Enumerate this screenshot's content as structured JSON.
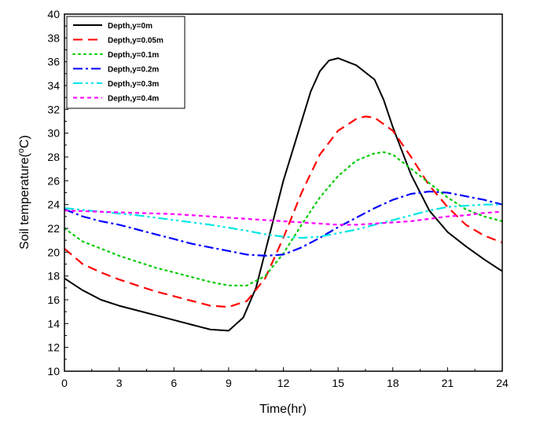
{
  "chart_data": {
    "type": "line",
    "xlabel": "Time(hr)",
    "ylabel_main": "Soil temperature(",
    "ylabel_sup": "o",
    "ylabel_end": "C)",
    "xlim": [
      0,
      24
    ],
    "ylim": [
      10,
      40
    ],
    "xticks": [
      "0",
      "3",
      "6",
      "9",
      "12",
      "15",
      "18",
      "21",
      "24"
    ],
    "yticks": [
      "10",
      "12",
      "14",
      "16",
      "18",
      "20",
      "22",
      "24",
      "26",
      "28",
      "30",
      "32",
      "34",
      "36",
      "38",
      "40"
    ],
    "grid": false,
    "legend_position": "top-left",
    "series": [
      {
        "name": "Depth,y=0m",
        "color": "#000000",
        "dash": "solid",
        "points": [
          [
            0,
            17.8
          ],
          [
            1,
            16.8
          ],
          [
            2,
            16.0
          ],
          [
            3,
            15.5
          ],
          [
            4,
            15.1
          ],
          [
            5,
            14.7
          ],
          [
            6,
            14.3
          ],
          [
            7,
            13.9
          ],
          [
            8,
            13.5
          ],
          [
            9,
            13.4
          ],
          [
            9.8,
            14.5
          ],
          [
            10.5,
            17.0
          ],
          [
            11,
            20.0
          ],
          [
            11.5,
            23.0
          ],
          [
            12,
            26.0
          ],
          [
            13,
            31.0
          ],
          [
            13.5,
            33.5
          ],
          [
            14,
            35.2
          ],
          [
            14.5,
            36.1
          ],
          [
            15,
            36.3
          ],
          [
            16,
            35.7
          ],
          [
            17,
            34.5
          ],
          [
            17.5,
            32.8
          ],
          [
            18,
            30.5
          ],
          [
            19,
            26.5
          ],
          [
            20,
            23.5
          ],
          [
            21,
            21.7
          ],
          [
            22,
            20.5
          ],
          [
            23,
            19.4
          ],
          [
            24,
            18.4
          ]
        ]
      },
      {
        "name": "Depth,y=0.05m",
        "color": "#ff0000",
        "dash": "dashed",
        "points": [
          [
            0,
            20.3
          ],
          [
            1,
            19.0
          ],
          [
            2,
            18.3
          ],
          [
            3,
            17.7
          ],
          [
            4,
            17.2
          ],
          [
            5,
            16.7
          ],
          [
            6,
            16.3
          ],
          [
            7,
            15.9
          ],
          [
            8,
            15.5
          ],
          [
            9,
            15.4
          ],
          [
            10,
            15.9
          ],
          [
            11,
            17.8
          ],
          [
            12,
            21.2
          ],
          [
            13,
            25.0
          ],
          [
            14,
            28.2
          ],
          [
            15,
            30.2
          ],
          [
            16,
            31.2
          ],
          [
            16.5,
            31.4
          ],
          [
            17,
            31.3
          ],
          [
            18,
            30.2
          ],
          [
            19,
            28.0
          ],
          [
            20,
            25.6
          ],
          [
            21,
            23.8
          ],
          [
            22,
            22.3
          ],
          [
            23,
            21.4
          ],
          [
            24,
            20.8
          ]
        ]
      },
      {
        "name": "Depth,y=0.1m",
        "color": "#00cc00",
        "dash": "dotted",
        "points": [
          [
            0,
            22.0
          ],
          [
            1,
            20.9
          ],
          [
            2,
            20.3
          ],
          [
            3,
            19.7
          ],
          [
            4,
            19.2
          ],
          [
            5,
            18.7
          ],
          [
            6,
            18.3
          ],
          [
            7,
            17.9
          ],
          [
            8,
            17.5
          ],
          [
            9,
            17.2
          ],
          [
            10,
            17.2
          ],
          [
            11,
            18.0
          ],
          [
            12,
            19.9
          ],
          [
            13,
            22.3
          ],
          [
            14,
            24.6
          ],
          [
            15,
            26.4
          ],
          [
            16,
            27.7
          ],
          [
            17,
            28.3
          ],
          [
            17.5,
            28.4
          ],
          [
            18,
            28.2
          ],
          [
            19,
            27.0
          ],
          [
            20,
            25.8
          ],
          [
            21,
            24.6
          ],
          [
            22,
            23.6
          ],
          [
            23,
            23.0
          ],
          [
            24,
            22.6
          ]
        ]
      },
      {
        "name": "Depth,y=0.2m",
        "color": "#0000ff",
        "dash": "dashdot",
        "points": [
          [
            0,
            23.6
          ],
          [
            1,
            23.0
          ],
          [
            2,
            22.6
          ],
          [
            3,
            22.3
          ],
          [
            4,
            21.9
          ],
          [
            5,
            21.5
          ],
          [
            6,
            21.1
          ],
          [
            7,
            20.7
          ],
          [
            8,
            20.4
          ],
          [
            9,
            20.1
          ],
          [
            10,
            19.8
          ],
          [
            11,
            19.7
          ],
          [
            12,
            19.8
          ],
          [
            13,
            20.4
          ],
          [
            14,
            21.2
          ],
          [
            15,
            22.1
          ],
          [
            16,
            22.9
          ],
          [
            17,
            23.7
          ],
          [
            18,
            24.4
          ],
          [
            19,
            24.9
          ],
          [
            20,
            25.1
          ],
          [
            21,
            25.0
          ],
          [
            22,
            24.7
          ],
          [
            23,
            24.4
          ],
          [
            24,
            24.0
          ]
        ]
      },
      {
        "name": "Depth,y=0.3m",
        "color": "#00e5e5",
        "dash": "dashdotdot",
        "points": [
          [
            0,
            23.7
          ],
          [
            2,
            23.4
          ],
          [
            4,
            23.1
          ],
          [
            6,
            22.7
          ],
          [
            8,
            22.3
          ],
          [
            10,
            21.8
          ],
          [
            11,
            21.5
          ],
          [
            12,
            21.3
          ],
          [
            13,
            21.2
          ],
          [
            14,
            21.3
          ],
          [
            15,
            21.6
          ],
          [
            16,
            21.9
          ],
          [
            17,
            22.3
          ],
          [
            18,
            22.7
          ],
          [
            19,
            23.1
          ],
          [
            20,
            23.5
          ],
          [
            21,
            23.8
          ],
          [
            22,
            23.9
          ],
          [
            23,
            24.0
          ],
          [
            24,
            24.0
          ]
        ]
      },
      {
        "name": "Depth,y=0.4m",
        "color": "#ff00ff",
        "dash": "shortdash",
        "points": [
          [
            0,
            23.5
          ],
          [
            2,
            23.4
          ],
          [
            4,
            23.3
          ],
          [
            6,
            23.2
          ],
          [
            8,
            23.0
          ],
          [
            10,
            22.8
          ],
          [
            12,
            22.6
          ],
          [
            14,
            22.4
          ],
          [
            15,
            22.3
          ],
          [
            16,
            22.3
          ],
          [
            17,
            22.4
          ],
          [
            18,
            22.5
          ],
          [
            19,
            22.6
          ],
          [
            20,
            22.8
          ],
          [
            21,
            23.0
          ],
          [
            22,
            23.1
          ],
          [
            23,
            23.3
          ],
          [
            24,
            23.4
          ]
        ]
      }
    ]
  }
}
